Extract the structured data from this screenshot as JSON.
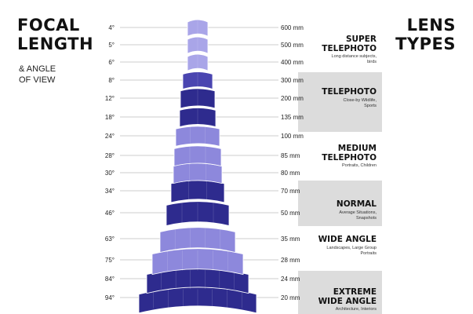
{
  "left_title": {
    "line1": "FOCAL",
    "line2": "LENGTH",
    "sub1": "& ANGLE",
    "sub2": "OF VIEW"
  },
  "right_title": {
    "line1": "LENS",
    "line2": "TYPES"
  },
  "rows": [
    {
      "angle": "4°",
      "focal": "600 mm"
    },
    {
      "angle": "5°",
      "focal": "500 mm"
    },
    {
      "angle": "6°",
      "focal": "400 mm"
    },
    {
      "angle": "8°",
      "focal": "300 mm"
    },
    {
      "angle": "12°",
      "focal": "200 mm"
    },
    {
      "angle": "18°",
      "focal": "135 mm"
    },
    {
      "angle": "24°",
      "focal": "100 mm"
    },
    {
      "angle": "28°",
      "focal": "85 mm"
    },
    {
      "angle": "30°",
      "focal": "80 mm"
    },
    {
      "angle": "34°",
      "focal": "70 mm"
    },
    {
      "angle": "46°",
      "focal": "50 mm"
    },
    {
      "angle": "63°",
      "focal": "35 mm"
    },
    {
      "angle": "75°",
      "focal": "28 mm"
    },
    {
      "angle": "84°",
      "focal": "24 mm"
    },
    {
      "angle": "94°",
      "focal": "20 mm"
    }
  ],
  "lens_types": [
    {
      "name": "SUPER TELEPHOTO",
      "name_lines": [
        "SUPER",
        "TELEPHOTO"
      ],
      "desc": "Long distance subjects, birds",
      "desc_lines": [
        "Long distance subjects,",
        "birds"
      ],
      "background": "#ffffff"
    },
    {
      "name": "TELEPHOTO",
      "name_lines": [
        "TELEPHOTO"
      ],
      "desc": "Close-by Wildlife, Sports",
      "desc_lines": [
        "Close-by Wildlife,",
        "Sports"
      ],
      "background": "#dcdcdc"
    },
    {
      "name": "MEDIUM TELEPHOTO",
      "name_lines": [
        "MEDIUM",
        "TELEPHOTO"
      ],
      "desc": "Portraits, Children",
      "desc_lines": [
        "Portraits, Children"
      ],
      "background": "#ffffff"
    },
    {
      "name": "NORMAL",
      "name_lines": [
        "NORMAL"
      ],
      "desc": "Average Situations, Snapshots",
      "desc_lines": [
        "Average Situations,",
        "Snapshots"
      ],
      "background": "#dcdcdc"
    },
    {
      "name": "WIDE ANGLE",
      "name_lines": [
        "WIDE ANGLE"
      ],
      "desc": "Landscapes, Large Group Portraits",
      "desc_lines": [
        "Landscapes, Large Group",
        "Portraits"
      ],
      "background": "#ffffff"
    },
    {
      "name": "EXTREME WIDE ANGLE",
      "name_lines": [
        "EXTREME",
        "WIDE ANGLE"
      ],
      "desc": "Architecture, Interiors",
      "desc_lines": [
        "Architecture, Interiors"
      ],
      "background": "#dcdcdc"
    }
  ],
  "colors": {
    "dark_band": "#2e2b8e",
    "light_band": "#8d88dc",
    "lightest_band": "#a9a5e8",
    "mid_band": "#4a45b0",
    "guide_line": "#9a9a9a",
    "text": "#111111"
  }
}
